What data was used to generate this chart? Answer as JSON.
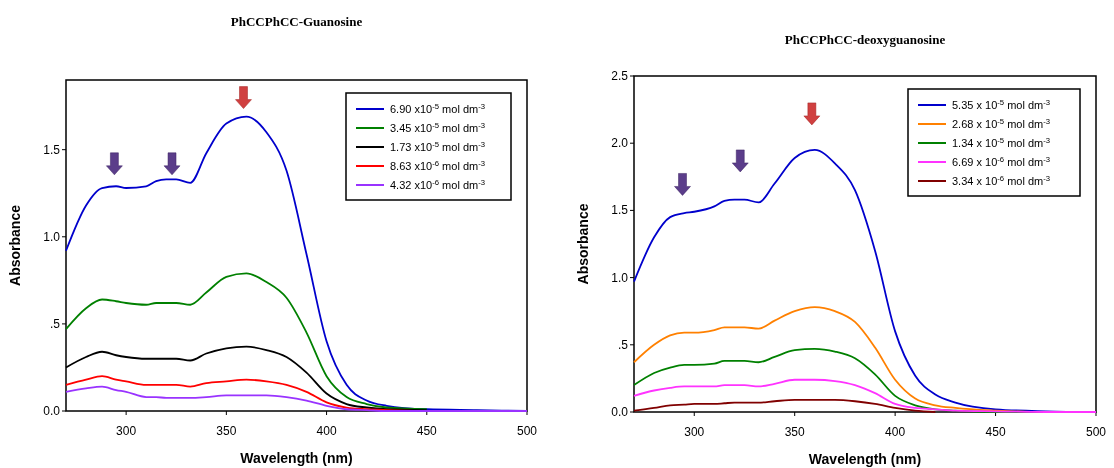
{
  "chart_data": [
    {
      "type": "line",
      "title": "PhCCPhCC-Guanosine",
      "xlabel": "Wavelength (nm)",
      "ylabel": "Absorbance",
      "xlim": [
        270,
        500
      ],
      "ylim": [
        0,
        1.9
      ],
      "xticks": [
        300,
        350,
        400,
        450,
        500
      ],
      "yticks": [
        {
          "value": 0,
          "label": "0.0"
        },
        {
          "value": 0.5,
          "label": ".5"
        },
        {
          "value": 1,
          "label": "1.0"
        },
        {
          "value": 1.5,
          "label": "1.5"
        }
      ],
      "grid": false,
      "legend": "top right",
      "marker": "none",
      "line_style": "solid",
      "x": [
        270,
        280,
        288,
        295,
        300,
        310,
        315,
        320,
        325,
        332,
        340,
        350,
        360,
        370,
        380,
        390,
        400,
        410,
        420,
        430,
        450,
        475,
        500
      ],
      "series": [
        {
          "name": "6.90 x10$^{-5}$ mol dm$^{-3}$",
          "color": "#0000cc",
          "values": [
            0.92,
            1.18,
            1.28,
            1.29,
            1.28,
            1.29,
            1.32,
            1.33,
            1.33,
            1.31,
            1.48,
            1.65,
            1.69,
            1.6,
            1.38,
            0.9,
            0.4,
            0.15,
            0.06,
            0.03,
            0.01,
            0.005,
            0
          ]
        },
        {
          "name": "3.45 x10$^{-5}$ mol dm$^{-3}$",
          "color": "#008000",
          "values": [
            0.47,
            0.59,
            0.64,
            0.63,
            0.62,
            0.61,
            0.62,
            0.62,
            0.62,
            0.61,
            0.68,
            0.77,
            0.79,
            0.74,
            0.65,
            0.45,
            0.2,
            0.08,
            0.04,
            0.02,
            0.01,
            null,
            null
          ]
        },
        {
          "name": "1.73 x10$^{-5}$ mol dm$^{-3}$",
          "color": "#000000",
          "values": [
            0.25,
            0.31,
            0.34,
            0.32,
            0.31,
            0.3,
            0.3,
            0.3,
            0.3,
            0.29,
            0.33,
            0.36,
            0.37,
            0.35,
            0.31,
            0.22,
            0.1,
            0.04,
            0.02,
            0.01,
            0.005,
            null,
            null
          ]
        },
        {
          "name": "8.63 x10$^{-6}$ mol dm$^{-3}$",
          "color": "#ff0000",
          "values": [
            0.15,
            0.18,
            0.2,
            0.18,
            0.17,
            0.15,
            0.15,
            0.15,
            0.15,
            0.14,
            0.16,
            0.17,
            0.18,
            0.17,
            0.15,
            0.11,
            0.05,
            0.02,
            0.01,
            0.005,
            0,
            null,
            null
          ]
        },
        {
          "name": "4.32 x10$^{-6}$ mol dm$^{-3}$",
          "color": "#9933ff",
          "values": [
            0.11,
            0.13,
            0.14,
            0.12,
            0.11,
            0.08,
            0.08,
            0.075,
            0.075,
            0.075,
            0.08,
            0.09,
            0.09,
            0.09,
            0.08,
            0.06,
            0.03,
            0.01,
            0.005,
            0,
            0,
            0,
            0
          ]
        }
      ]
    },
    {
      "type": "line",
      "title": "PhCCPhCC-deoxyguanosine",
      "xlabel": "Wavelength (nm)",
      "ylabel": "Absorbance",
      "xlim": [
        270,
        500
      ],
      "ylim": [
        0,
        2.5
      ],
      "xticks": [
        300,
        350,
        400,
        450,
        500
      ],
      "yticks": [
        {
          "value": 0,
          "label": "0.0"
        },
        {
          "value": 0.5,
          "label": ".5"
        },
        {
          "value": 1,
          "label": "1.0"
        },
        {
          "value": 1.5,
          "label": "1.5"
        },
        {
          "value": 2,
          "label": "2.0"
        },
        {
          "value": 2.5,
          "label": "2.5"
        }
      ],
      "grid": false,
      "legend": "top right",
      "marker": "none",
      "line_style": "solid",
      "x": [
        270,
        280,
        288,
        295,
        300,
        310,
        315,
        320,
        325,
        332,
        340,
        350,
        360,
        370,
        380,
        390,
        400,
        410,
        420,
        430,
        450,
        475,
        500
      ],
      "series": [
        {
          "name": "5.35 x 10$^{-5}$ mol dm$^{-3}$",
          "color": "#0000cc",
          "values": [
            0.97,
            1.3,
            1.45,
            1.48,
            1.49,
            1.53,
            1.57,
            1.58,
            1.58,
            1.56,
            1.7,
            1.89,
            1.95,
            1.85,
            1.65,
            1.2,
            0.6,
            0.27,
            0.13,
            0.07,
            0.02,
            0.005,
            0
          ]
        },
        {
          "name": "2.68 x 10$^{-5}$ mol dm$^{-3}$",
          "color": "#ff8000",
          "values": [
            0.37,
            0.5,
            0.57,
            0.59,
            0.59,
            0.61,
            0.63,
            0.63,
            0.63,
            0.62,
            0.68,
            0.75,
            0.78,
            0.75,
            0.67,
            0.48,
            0.24,
            0.1,
            0.05,
            0.03,
            0.01,
            0,
            0
          ]
        },
        {
          "name": "1.34 x 10$^{-5}$ mol dm$^{-3}$",
          "color": "#008000",
          "values": [
            0.2,
            0.29,
            0.33,
            0.35,
            0.35,
            0.36,
            0.38,
            0.38,
            0.38,
            0.37,
            0.41,
            0.46,
            0.47,
            0.45,
            0.4,
            0.28,
            0.12,
            0.05,
            0.02,
            0.01,
            0,
            0,
            0
          ]
        },
        {
          "name": "6.69 x 10$^{-6}$ mol dm$^{-3}$",
          "color": "#ff33ff",
          "values": [
            0.12,
            0.16,
            0.18,
            0.19,
            0.19,
            0.19,
            0.2,
            0.2,
            0.2,
            0.19,
            0.21,
            0.24,
            0.24,
            0.23,
            0.2,
            0.14,
            0.06,
            0.03,
            0.02,
            0.01,
            0.005,
            0,
            0
          ]
        },
        {
          "name": "3.34 x 10$^{-6}$ mol dm$^{-3}$",
          "color": "#800000",
          "values": [
            0.01,
            0.03,
            0.05,
            0.055,
            0.06,
            0.06,
            0.065,
            0.07,
            0.07,
            0.07,
            0.08,
            0.09,
            0.09,
            0.09,
            0.08,
            0.06,
            0.03,
            0.01,
            0,
            null,
            null,
            null,
            null
          ]
        }
      ]
    }
  ]
}
